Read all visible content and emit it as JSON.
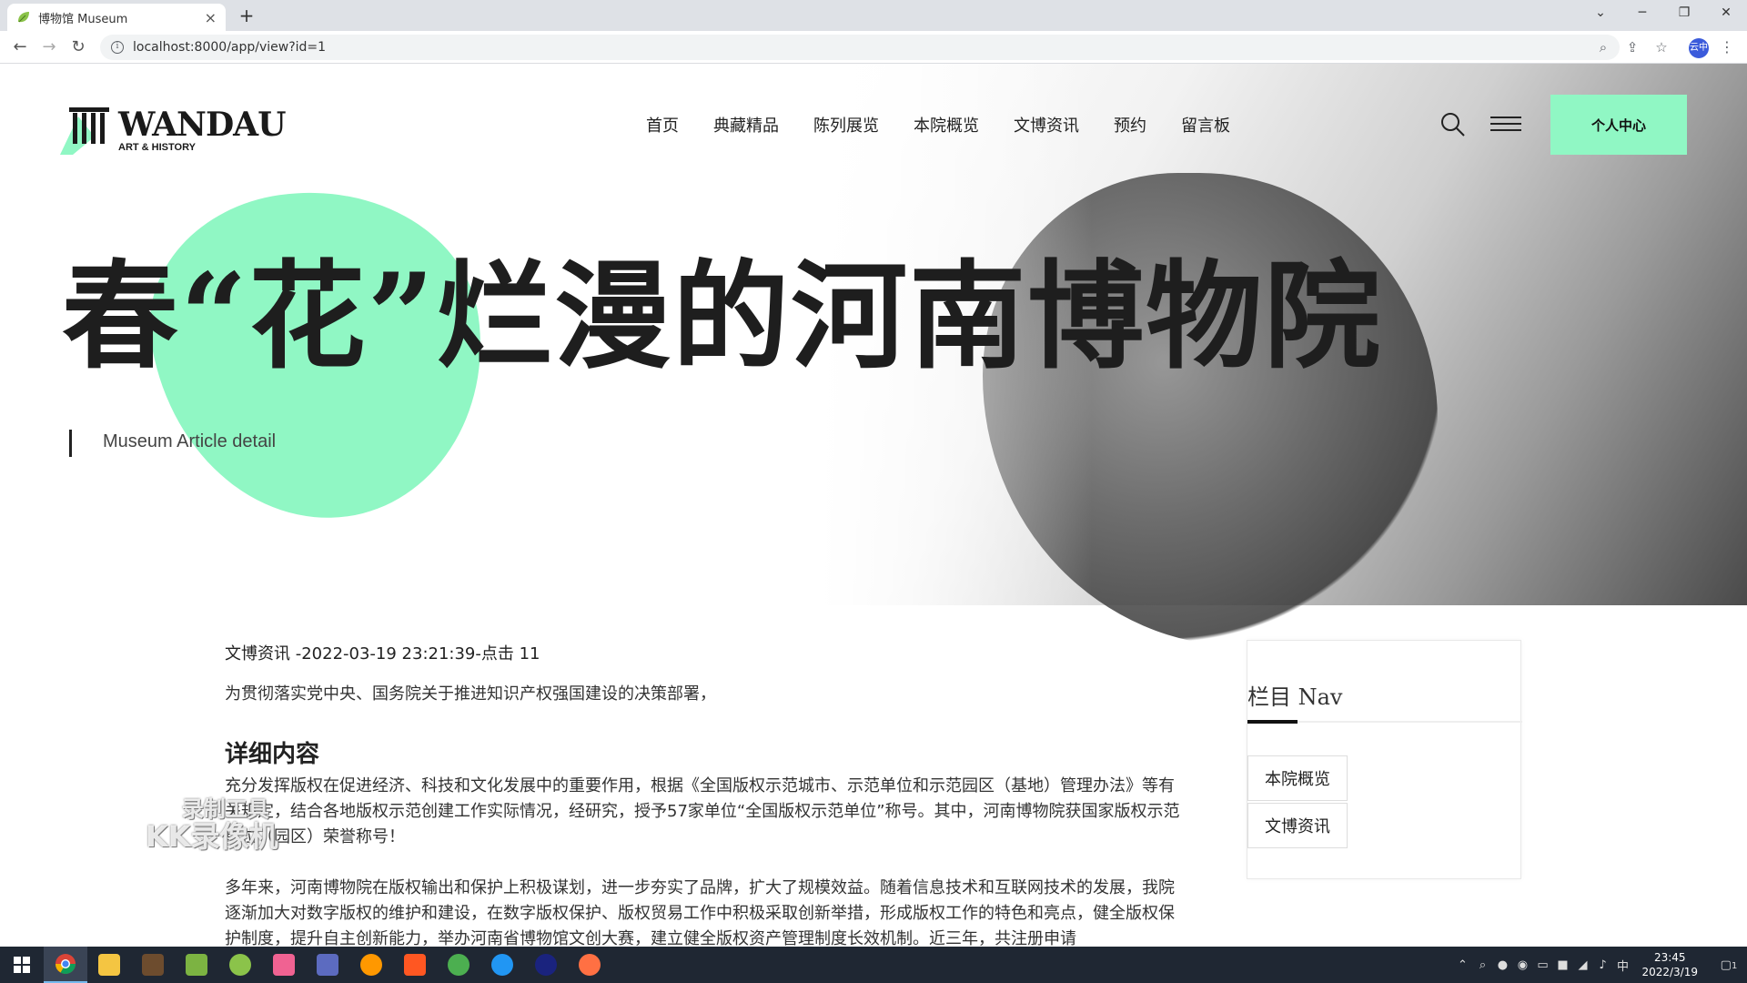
{
  "browser": {
    "tab_title": "博物馆 Museum",
    "tab_close": "×",
    "new_tab": "+",
    "url": "localhost:8000/app/view?id=1",
    "window_controls": [
      "⌄",
      "─",
      "❐",
      "✕"
    ],
    "avatar_label": "云中"
  },
  "header": {
    "logo_text": "WANDAU",
    "logo_sub": "ART & HISTORY",
    "nav": [
      "首页",
      "典藏精品",
      "陈列展览",
      "本院概览",
      "文博资讯",
      "预约",
      "留言板"
    ],
    "user_center": "个人中心"
  },
  "hero": {
    "title": "春“花”烂漫的河南博物院",
    "subtitle": "Museum Article detail"
  },
  "article": {
    "meta": "文博资讯 -2022-03-19 23:21:39-点击 11",
    "lead": "为贯彻落实党中央、国务院关于推进知识产权强国建设的决策部署，",
    "section_heading": "详细内容",
    "para1": "充分发挥版权在促进经济、科技和文化发展中的重要作用，根据《全国版权示范城市、示范单位和示范园区（基地）管理办法》等有关规定，结合各地版权示范创建工作实际情况，经研究，授予57家单位“全国版权示范单位”称号。其中，河南博物院获国家版权示范单位（园区）荣誉称号！",
    "para2": "多年来，河南博物院在版权输出和保护上积极谋划，进一步夯实了品牌，扩大了规模效益。随着信息技术和互联网技术的发展，我院逐渐加大对数字版权的维护和建设，在数字版权保护、版权贸易工作中积极采取创新举措，形成版权工作的特色和亮点，健全版权保护制度，提升自主创新能力，举办河南省博物馆文创大赛，建立健全版权资产管理制度长效机制。近三年，共注册申请"
  },
  "sidebar": {
    "title": "栏目 Nav",
    "items": [
      "本院概览",
      "文博资讯"
    ]
  },
  "watermark": {
    "line1": "录制工具",
    "line2": "KK录像机"
  },
  "taskbar": {
    "time": "23:45",
    "date": "2022/3/19",
    "ime": "中",
    "notifications": "1"
  },
  "colors": {
    "accent": "#90f7c4",
    "text": "#222222",
    "taskbar": "#1f2733"
  }
}
